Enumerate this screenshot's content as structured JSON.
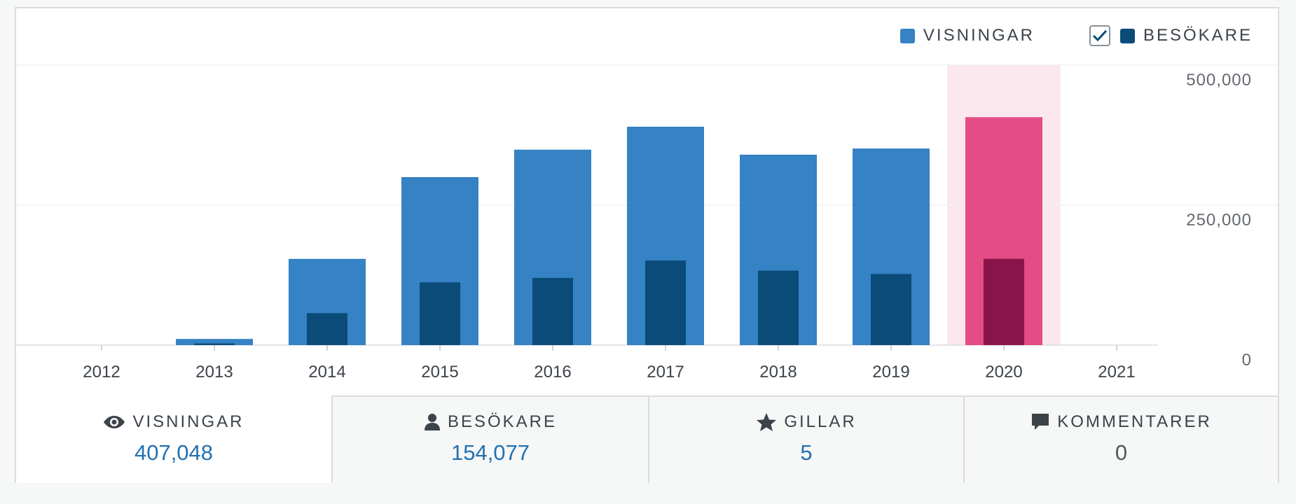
{
  "legend": {
    "views_label": "VISNINGAR",
    "visitors_label": "BESÖKARE",
    "visitors_checked": true
  },
  "colors": {
    "views": "#3582c4",
    "visitors": "#0a4b78",
    "highlight_views": "#e34c84",
    "highlight_visitors": "#8a1449",
    "highlight_band": "#fbe8ef",
    "accent_value": "#2271b1"
  },
  "chart_data": {
    "type": "bar",
    "categories": [
      "2012",
      "2013",
      "2014",
      "2015",
      "2016",
      "2017",
      "2018",
      "2019",
      "2020",
      "2021"
    ],
    "series": [
      {
        "name": "VISNINGAR",
        "values": [
          0,
          11000,
          154000,
          300000,
          349000,
          390000,
          340000,
          351000,
          407048,
          0
        ]
      },
      {
        "name": "BESÖKARE",
        "values": [
          0,
          3000,
          57000,
          112000,
          120000,
          151000,
          133000,
          127000,
          154077,
          0
        ]
      }
    ],
    "highlighted_category": "2020",
    "y_ticks": [
      "500,000",
      "250,000",
      "0"
    ],
    "ylim": [
      0,
      500000
    ],
    "grid": true
  },
  "tabs": [
    {
      "icon": "eye-icon",
      "label": "VISNINGAR",
      "value": "407,048",
      "selected": true
    },
    {
      "icon": "person-icon",
      "label": "BESÖKARE",
      "value": "154,077",
      "selected": false
    },
    {
      "icon": "star-icon",
      "label": "GILLAR",
      "value": "5",
      "selected": false
    },
    {
      "icon": "comment-icon",
      "label": "KOMMENTARER",
      "value": "0",
      "selected": false
    }
  ]
}
